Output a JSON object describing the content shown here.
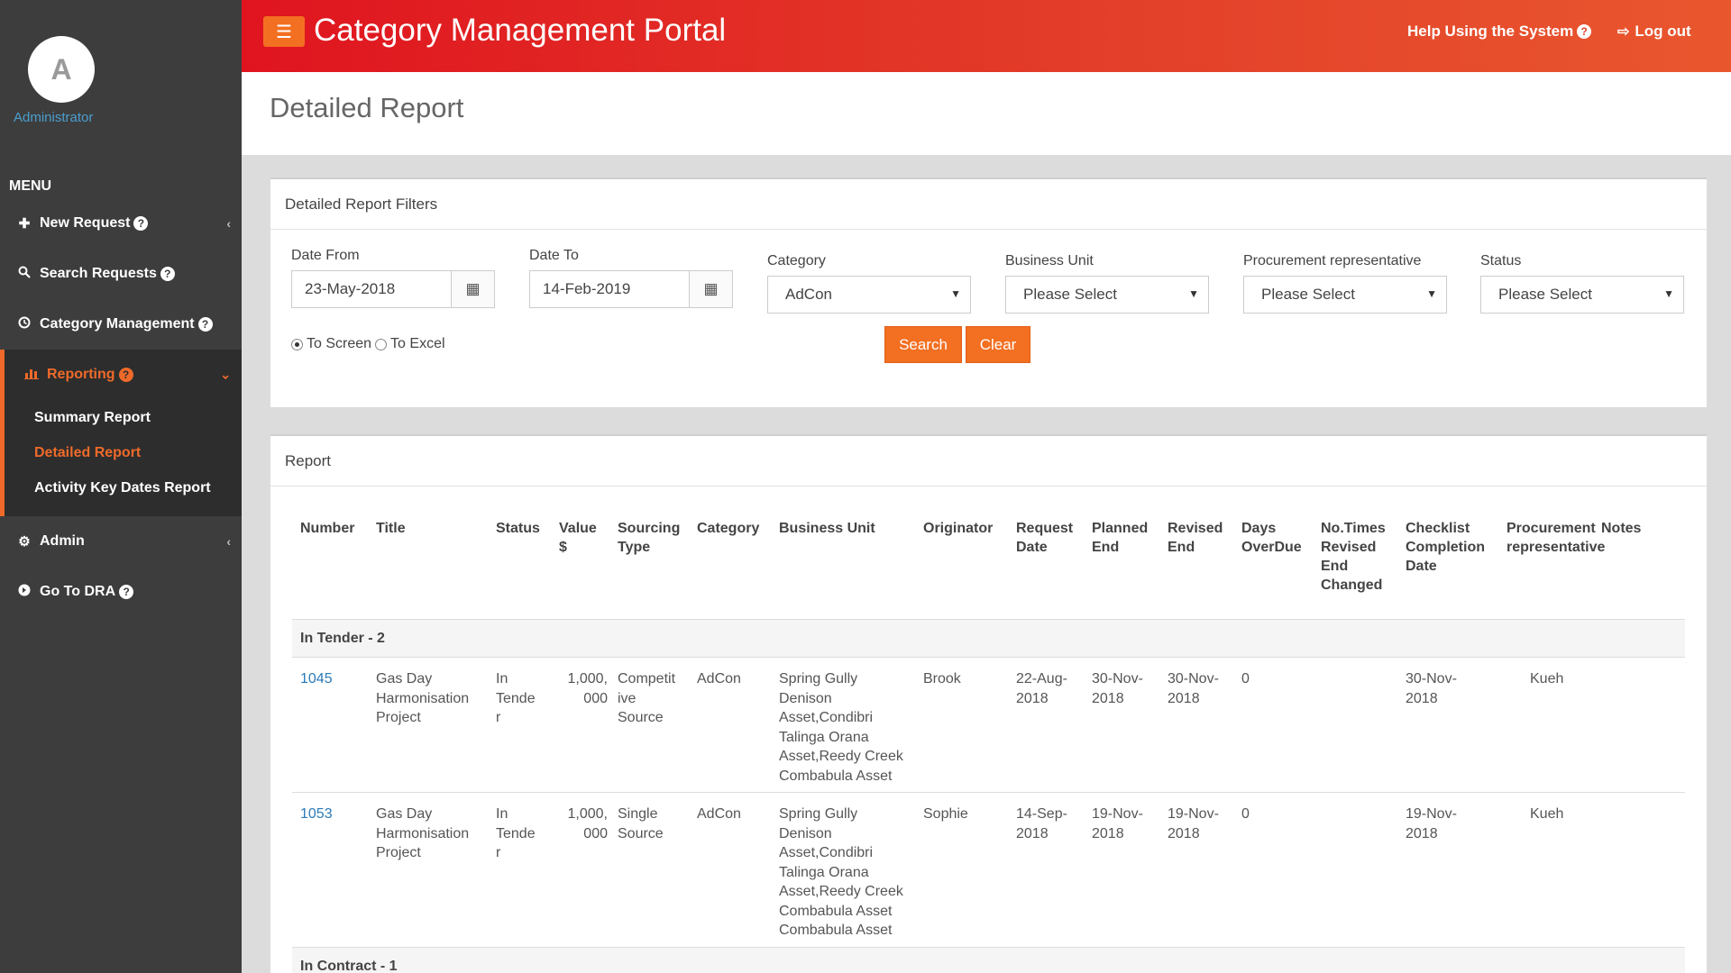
{
  "sidebar": {
    "avatar_letter": "A",
    "user_role": "Administrator",
    "menu_header": "MENU",
    "items": [
      {
        "label": "New Request",
        "icon": "plus-icon"
      },
      {
        "label": "Search Requests",
        "icon": "search-icon"
      },
      {
        "label": "Category Management",
        "icon": "clock-icon"
      },
      {
        "label": "Reporting",
        "icon": "bar-chart-icon"
      },
      {
        "label": "Admin",
        "icon": "cogs-icon"
      },
      {
        "label": "Go To DRA",
        "icon": "arrow-circle-icon"
      }
    ],
    "reporting_sub": [
      {
        "label": "Summary Report"
      },
      {
        "label": "Detailed Report"
      },
      {
        "label": "Activity Key Dates Report"
      }
    ]
  },
  "header": {
    "title": "Category Management Portal",
    "help_label": "Help Using the System",
    "logout_label": "Log out"
  },
  "page": {
    "title": "Detailed Report"
  },
  "filters": {
    "heading": "Detailed Report Filters",
    "date_from_label": "Date From",
    "date_from": "23-May-2018",
    "date_to_label": "Date To",
    "date_to": "14-Feb-2019",
    "category_label": "Category",
    "category_value": "AdCon",
    "business_unit_label": "Business Unit",
    "business_unit_value": "Please Select",
    "procurement_label": "Procurement representative",
    "procurement_value": "Please Select",
    "status_label": "Status",
    "status_value": "Please Select",
    "to_screen_label": "To Screen",
    "to_excel_label": "To Excel",
    "search_label": "Search",
    "clear_label": "Clear"
  },
  "report": {
    "heading": "Report",
    "columns": {
      "number": [
        "Number"
      ],
      "title": [
        "Title"
      ],
      "status": [
        "Status"
      ],
      "value": [
        "Value",
        "$"
      ],
      "sourcing": [
        "Sourcing",
        "Type"
      ],
      "category": [
        "Category"
      ],
      "business_unit": [
        "Business Unit"
      ],
      "originator": [
        "Originator"
      ],
      "request_date": [
        "Request",
        "Date"
      ],
      "planned_end": [
        "Planned",
        "End"
      ],
      "revised_end": [
        "Revised",
        "End"
      ],
      "days_overdue": [
        "Days",
        "OverDue"
      ],
      "times_revised": [
        "No.Times",
        "Revised",
        "End",
        "Changed"
      ],
      "checklist": [
        "Checklist",
        "Completion",
        "Date"
      ],
      "procurement": [
        "Procurement",
        "representative"
      ],
      "notes": [
        "Notes"
      ]
    },
    "group1": "In Tender - 2",
    "rows": [
      {
        "number": "1045",
        "title": [
          "Gas Day",
          "Harmonisation",
          "Project"
        ],
        "status": [
          "In",
          "Tende",
          "r"
        ],
        "value": [
          "1,000,",
          "000"
        ],
        "sourcing": [
          "Competit",
          "ive",
          "Source"
        ],
        "category": "AdCon",
        "business_unit": [
          "Spring Gully",
          "Denison",
          "Asset,Condibri",
          "Talinga Orana",
          "Asset,Reedy Creek",
          "Combabula Asset"
        ],
        "originator": "Brook",
        "request_date": [
          "22-Aug-",
          "2018"
        ],
        "planned_end": [
          "30-Nov-",
          "2018"
        ],
        "revised_end": [
          "30-Nov-",
          "2018"
        ],
        "days_overdue": "0",
        "checklist": [
          "30-Nov-",
          "2018"
        ],
        "procurement": "Kueh"
      },
      {
        "number": "1053",
        "title": [
          "Gas Day",
          "Harmonisation",
          "Project"
        ],
        "status": [
          "In",
          "Tende",
          "r"
        ],
        "value": [
          "1,000,",
          "000"
        ],
        "sourcing": [
          "Single",
          "Source"
        ],
        "category": "AdCon",
        "business_unit": [
          "Spring Gully",
          "Denison",
          "Asset,Condibri",
          "Talinga Orana",
          "Asset,Reedy Creek",
          "Combabula Asset",
          "Combabula Asset"
        ],
        "originator": "Sophie",
        "request_date": [
          "14-Sep-",
          "2018"
        ],
        "planned_end": [
          "19-Nov-",
          "2018"
        ],
        "revised_end": [
          "19-Nov-",
          "2018"
        ],
        "days_overdue": "0",
        "checklist": [
          "19-Nov-",
          "2018"
        ],
        "procurement": "Kueh"
      }
    ],
    "group2": "In Contract - 1"
  },
  "colors": {
    "accent": "#f36f21",
    "header_red": "#e0141f",
    "sidebar": "#3d3d3d",
    "link": "#2a7ab8"
  }
}
